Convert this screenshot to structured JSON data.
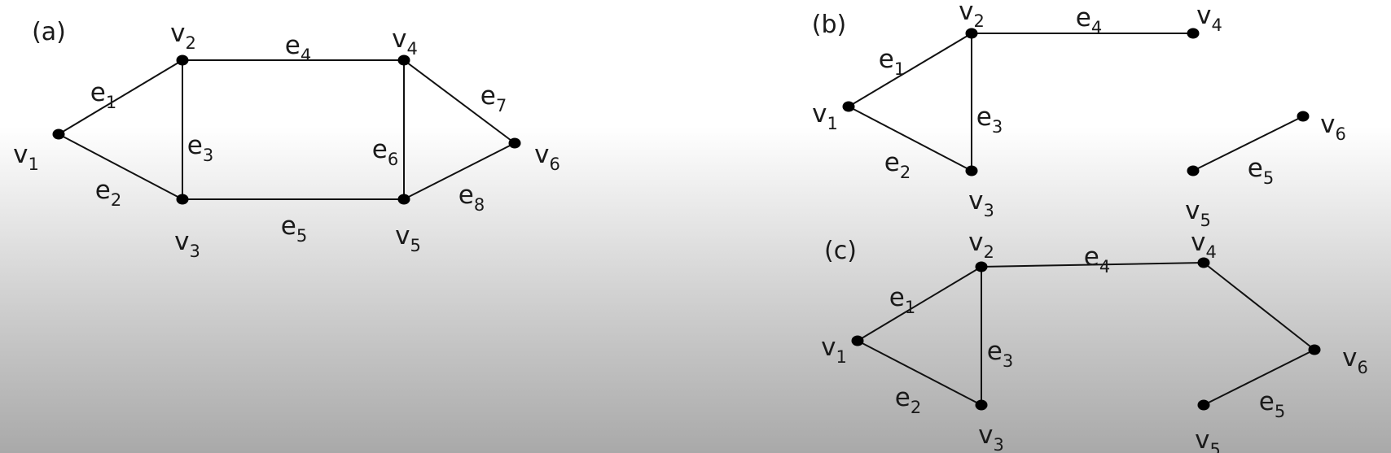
{
  "colors": {
    "stroke": "#111111",
    "vertex": "#000000",
    "text": "#1a1a1a"
  },
  "graphs": [
    {
      "id": "a",
      "label": "(a)",
      "vertices": [
        {
          "id": "v1",
          "base": "v",
          "sub": "1"
        },
        {
          "id": "v2",
          "base": "v",
          "sub": "2"
        },
        {
          "id": "v3",
          "base": "v",
          "sub": "3"
        },
        {
          "id": "v4",
          "base": "v",
          "sub": "4"
        },
        {
          "id": "v5",
          "base": "v",
          "sub": "5"
        },
        {
          "id": "v6",
          "base": "v",
          "sub": "6"
        }
      ],
      "edges": [
        {
          "id": "e1",
          "base": "e",
          "sub": "1",
          "from": "v1",
          "to": "v2"
        },
        {
          "id": "e2",
          "base": "e",
          "sub": "2",
          "from": "v1",
          "to": "v3"
        },
        {
          "id": "e3",
          "base": "e",
          "sub": "3",
          "from": "v2",
          "to": "v3"
        },
        {
          "id": "e4",
          "base": "e",
          "sub": "4",
          "from": "v2",
          "to": "v4"
        },
        {
          "id": "e5",
          "base": "e",
          "sub": "5",
          "from": "v3",
          "to": "v5"
        },
        {
          "id": "e6",
          "base": "e",
          "sub": "6",
          "from": "v4",
          "to": "v5"
        },
        {
          "id": "e7",
          "base": "e",
          "sub": "7",
          "from": "v4",
          "to": "v6"
        },
        {
          "id": "e8",
          "base": "e",
          "sub": "8",
          "from": "v5",
          "to": "v6"
        }
      ]
    },
    {
      "id": "b",
      "label": "(b)",
      "vertices": [
        {
          "id": "v1",
          "base": "v",
          "sub": "1"
        },
        {
          "id": "v2",
          "base": "v",
          "sub": "2"
        },
        {
          "id": "v3",
          "base": "v",
          "sub": "3"
        },
        {
          "id": "v4",
          "base": "v",
          "sub": "4"
        },
        {
          "id": "v5",
          "base": "v",
          "sub": "5"
        },
        {
          "id": "v6",
          "base": "v",
          "sub": "6"
        }
      ],
      "edges": [
        {
          "id": "e1",
          "base": "e",
          "sub": "1",
          "from": "v1",
          "to": "v2"
        },
        {
          "id": "e2",
          "base": "e",
          "sub": "2",
          "from": "v1",
          "to": "v3"
        },
        {
          "id": "e3",
          "base": "e",
          "sub": "3",
          "from": "v2",
          "to": "v3"
        },
        {
          "id": "e4",
          "base": "e",
          "sub": "4",
          "from": "v2",
          "to": "v4"
        },
        {
          "id": "e5",
          "base": "e",
          "sub": "5",
          "from": "v5",
          "to": "v6"
        }
      ]
    },
    {
      "id": "c",
      "label": "(c)",
      "vertices": [
        {
          "id": "v1",
          "base": "v",
          "sub": "1"
        },
        {
          "id": "v2",
          "base": "v",
          "sub": "2"
        },
        {
          "id": "v3",
          "base": "v",
          "sub": "3"
        },
        {
          "id": "v4",
          "base": "v",
          "sub": "4"
        },
        {
          "id": "v5",
          "base": "v",
          "sub": "5"
        },
        {
          "id": "v6",
          "base": "v",
          "sub": "6"
        }
      ],
      "edges": [
        {
          "id": "e1",
          "base": "e",
          "sub": "1",
          "from": "v1",
          "to": "v2"
        },
        {
          "id": "e2",
          "base": "e",
          "sub": "2",
          "from": "v1",
          "to": "v3"
        },
        {
          "id": "e3",
          "base": "e",
          "sub": "3",
          "from": "v2",
          "to": "v3"
        },
        {
          "id": "e4",
          "base": "e",
          "sub": "4",
          "from": "v2",
          "to": "v4"
        },
        {
          "id": "e5",
          "base": "e",
          "sub": "5",
          "from": "v5",
          "to": "v6"
        },
        {
          "id": "e6",
          "base": "",
          "sub": "",
          "from": "v4",
          "to": "v6"
        }
      ]
    }
  ]
}
